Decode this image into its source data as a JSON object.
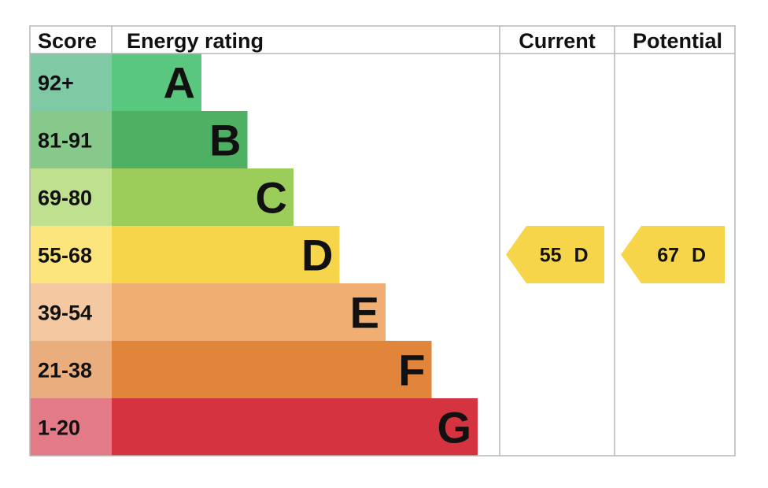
{
  "headers": {
    "score": "Score",
    "energy_rating": "Energy rating",
    "current": "Current",
    "potential": "Potential"
  },
  "chart_data": {
    "type": "bar",
    "bands": [
      {
        "letter": "A",
        "score_range": "92+",
        "color": "#5ac77e",
        "score_bg": "#7fc9a4"
      },
      {
        "letter": "B",
        "score_range": "81-91",
        "color": "#4db063",
        "score_bg": "#87c98b"
      },
      {
        "letter": "C",
        "score_range": "69-80",
        "color": "#9ccd5b",
        "score_bg": "#bfe08f"
      },
      {
        "letter": "D",
        "score_range": "55-68",
        "color": "#f6d54a",
        "score_bg": "#fbe57c"
      },
      {
        "letter": "E",
        "score_range": "39-54",
        "color": "#f0ae72",
        "score_bg": "#f4c9a2"
      },
      {
        "letter": "F",
        "score_range": "21-38",
        "color": "#e0853a",
        "score_bg": "#e9ad7e"
      },
      {
        "letter": "G",
        "score_range": "1-20",
        "color": "#d63341",
        "score_bg": "#e27a88"
      }
    ],
    "current": {
      "score": "55",
      "letter": "D",
      "band_index": 3,
      "color": "#f6d54a"
    },
    "potential": {
      "score": "67",
      "letter": "D",
      "band_index": 3,
      "color": "#f6d54a"
    }
  }
}
